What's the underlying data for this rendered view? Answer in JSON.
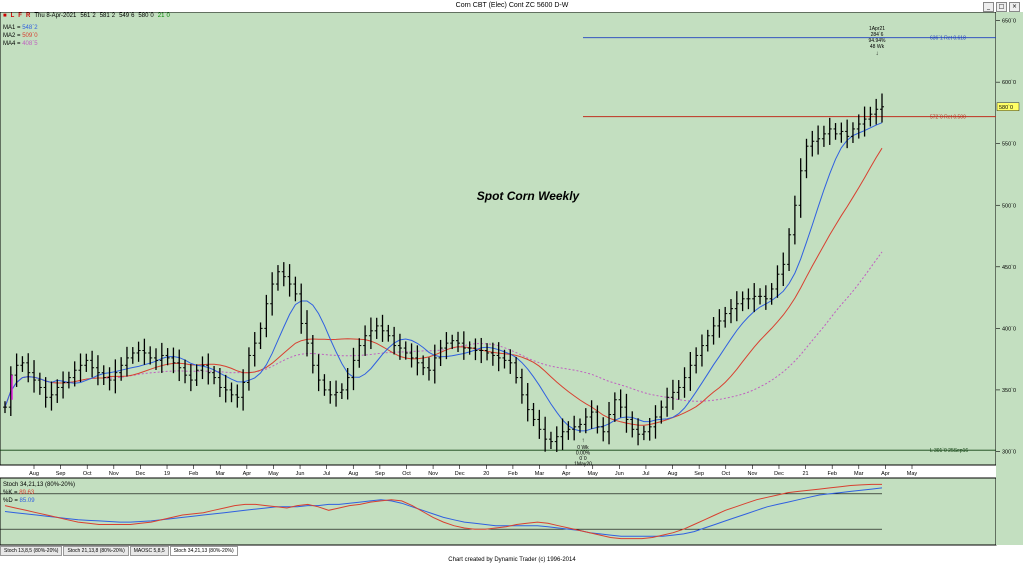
{
  "window": {
    "title": "Corn CBT (Elec) Cont ZC 5600 D-W",
    "btn_min": "_",
    "btn_max": "□",
    "btn_close": "×"
  },
  "toolbar": {
    "l": "L",
    "f": "F",
    "r": "R",
    "date_text": "Thu 8-Apr-2021",
    "ohlc": [
      "561`2",
      "581`2",
      "549`6",
      "580`0",
      "21`0"
    ]
  },
  "legend": {
    "ma1_label": "MA1 =",
    "ma1_value": "548`2",
    "ma2_label": "MA2 =",
    "ma2_value": "509`0",
    "ma4_label": "MA4 =",
    "ma4_value": "408`5"
  },
  "colors": {
    "plot_bg": "#c3dfc0",
    "bars": "#000000",
    "ma1": "#3060e0",
    "ma2": "#d84030",
    "ma4": "#c060c0",
    "fib_618": "#2040c0",
    "fib_500": "#c03020",
    "low_line": "#104010",
    "price_label_bg": "#ffff66"
  },
  "chart_data": {
    "type": "ohlc",
    "title": "Spot Corn Weekly",
    "x_labels": [
      "Aug",
      "Sep",
      "Oct",
      "Nov",
      "Dec",
      "19",
      "Feb",
      "Mar",
      "Apr",
      "May",
      "Jun",
      "Jul",
      "Aug",
      "Sep",
      "Oct",
      "Nov",
      "Dec",
      "20",
      "Feb",
      "Mar",
      "Apr",
      "May",
      "Jun",
      "Jul",
      "Aug",
      "Sep",
      "Oct",
      "Nov",
      "Dec",
      "21",
      "Feb",
      "Mar",
      "Apr",
      "May"
    ],
    "y_ticks": [
      "300`0",
      "350`0",
      "400`0",
      "450`0",
      "500`0",
      "550`0",
      "600`0",
      "650`0"
    ],
    "ylim": [
      289,
      657
    ],
    "close": [
      336,
      362,
      370,
      372,
      364,
      358,
      352,
      344,
      346,
      352,
      356,
      360,
      366,
      370,
      374,
      368,
      364,
      360,
      358,
      364,
      370,
      376,
      380,
      382,
      380,
      376,
      374,
      378,
      376,
      372,
      368,
      362,
      358,
      366,
      370,
      364,
      360,
      352,
      350,
      346,
      344,
      356,
      378,
      388,
      400,
      420,
      436,
      446,
      442,
      436,
      428,
      404,
      388,
      370,
      358,
      350,
      346,
      348,
      350,
      360,
      374,
      386,
      394,
      398,
      402,
      398,
      394,
      386,
      384,
      380,
      376,
      372,
      368,
      366,
      376,
      384,
      388,
      390,
      388,
      384,
      384,
      382,
      382,
      380,
      378,
      376,
      374,
      372,
      360,
      346,
      334,
      326,
      318,
      310,
      308,
      312,
      316,
      318,
      320,
      322,
      328,
      332,
      320,
      316,
      330,
      342,
      336,
      326,
      318,
      314,
      316,
      320,
      328,
      336,
      344,
      348,
      352,
      360,
      370,
      378,
      386,
      394,
      402,
      406,
      412,
      416,
      420,
      424,
      424,
      426,
      426,
      424,
      432,
      444,
      452,
      476,
      500,
      528,
      548,
      552,
      554,
      558,
      562,
      558,
      560,
      556,
      562,
      566,
      570,
      574,
      578,
      580
    ],
    "spot_marker": {
      "value": 352,
      "color": "#e020e0"
    },
    "ma1_label": "MA1",
    "ma2_label": "MA2",
    "ma4_label": "MA4",
    "hlines": [
      {
        "value": 636.1,
        "label": "636`1 Ret 0.618",
        "color": "#2040c0"
      },
      {
        "value": 572,
        "label": "572`0 Ret 0.500",
        "color": "#c03020"
      },
      {
        "value": 301,
        "label": "L 301`0 25Sep16",
        "color": "#104010"
      }
    ],
    "current_price_label": "580`0",
    "annotation_high": [
      "1Apr21",
      "284`6",
      "94.94%",
      "48 Wk"
    ],
    "annotation_low": [
      "0 Wk",
      "0.00%",
      "0`0",
      "1May20"
    ],
    "stoch": {
      "label": "Stoch 34,21,13 (80%-20%)",
      "k_label": "%K =",
      "k_value": "89.63",
      "d_label": "%D =",
      "d_value": "85.09",
      "ylim": [
        0,
        100
      ],
      "levels": [
        20,
        80
      ],
      "k": [
        60,
        56,
        52,
        48,
        44,
        40,
        36,
        32,
        30,
        28,
        28,
        28,
        28,
        30,
        32,
        36,
        40,
        44,
        46,
        48,
        52,
        56,
        60,
        62,
        62,
        60,
        58,
        56,
        60,
        62,
        58,
        52,
        56,
        60,
        62,
        66,
        68,
        70,
        68,
        60,
        50,
        40,
        32,
        26,
        22,
        20,
        20,
        22,
        24,
        28,
        30,
        32,
        30,
        26,
        22,
        18,
        14,
        10,
        6,
        4,
        4,
        4,
        6,
        10,
        14,
        20,
        28,
        36,
        44,
        52,
        58,
        64,
        70,
        74,
        78,
        82,
        84,
        86,
        88,
        90,
        92,
        94,
        95,
        96,
        96
      ],
      "d": [
        50,
        48,
        46,
        44,
        42,
        40,
        38,
        36,
        35,
        34,
        33,
        32,
        32,
        33,
        34,
        36,
        38,
        40,
        42,
        44,
        46,
        48,
        50,
        52,
        54,
        56,
        58,
        58,
        58,
        60,
        60,
        62,
        62,
        64,
        66,
        68,
        70,
        68,
        64,
        58,
        52,
        46,
        40,
        36,
        32,
        30,
        28,
        26,
        26,
        26,
        26,
        26,
        24,
        22,
        20,
        18,
        14,
        12,
        10,
        8,
        8,
        8,
        8,
        8,
        10,
        12,
        16,
        22,
        28,
        34,
        40,
        46,
        52,
        58,
        62,
        66,
        70,
        74,
        78,
        80,
        82,
        84,
        86,
        88,
        90
      ]
    }
  },
  "tabs": [
    "Stoch 13,8,5 (80%-20%)",
    "Stoch 21,13,8 (80%-20%)",
    "MAOSC 5,8,5",
    "Stoch 34,21,13 (80%-20%)"
  ],
  "footer": "Chart created by Dynamic Trader  (c) 1996-2014"
}
